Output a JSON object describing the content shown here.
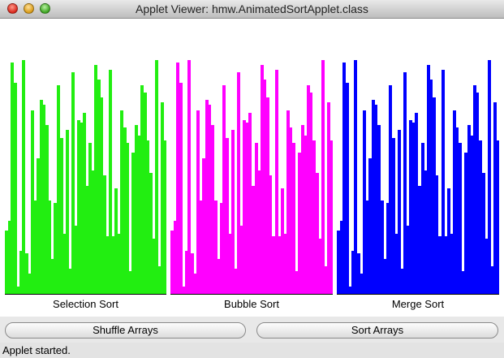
{
  "window": {
    "title": "Applet Viewer: hmw.AnimatedSortApplet.class"
  },
  "colors": {
    "selection": "#22ee11",
    "bubble": "#ff00ff",
    "merge": "#0000ff"
  },
  "panels": [
    {
      "label": "Selection Sort"
    },
    {
      "label": "Bubble Sort"
    },
    {
      "label": "Merge Sort"
    }
  ],
  "chart_data": {
    "type": "bar",
    "series": [
      {
        "name": "Selection Sort",
        "values": [
          25,
          29,
          92,
          84,
          3,
          17,
          93,
          16,
          8,
          73,
          37,
          54,
          77,
          75,
          67,
          37,
          14,
          36,
          83,
          62,
          24,
          65,
          10,
          88,
          27,
          69,
          68,
          72,
          43,
          60,
          49,
          91,
          85,
          78,
          47,
          23,
          89,
          23,
          42,
          24,
          73,
          66,
          60,
          9,
          56,
          67,
          63,
          83,
          80,
          61,
          48,
          22,
          93,
          11,
          76,
          61
        ]
      },
      {
        "name": "Bubble Sort",
        "values": [
          25,
          29,
          92,
          84,
          3,
          17,
          93,
          16,
          8,
          73,
          37,
          54,
          77,
          75,
          67,
          37,
          14,
          36,
          83,
          62,
          24,
          65,
          10,
          88,
          27,
          69,
          68,
          72,
          43,
          60,
          49,
          91,
          85,
          78,
          47,
          23,
          89,
          23,
          42,
          24,
          73,
          66,
          60,
          9,
          56,
          67,
          63,
          83,
          80,
          61,
          48,
          22,
          93,
          11,
          76,
          61
        ]
      },
      {
        "name": "Merge Sort",
        "values": [
          25,
          29,
          92,
          84,
          3,
          17,
          93,
          16,
          8,
          73,
          37,
          54,
          77,
          75,
          67,
          37,
          14,
          36,
          83,
          62,
          24,
          65,
          10,
          88,
          27,
          69,
          68,
          72,
          43,
          60,
          49,
          91,
          85,
          78,
          47,
          23,
          89,
          23,
          42,
          24,
          73,
          66,
          60,
          9,
          56,
          67,
          63,
          83,
          80,
          61,
          48,
          22,
          93,
          11,
          76,
          61
        ]
      }
    ],
    "ylim": [
      0,
      100
    ]
  },
  "buttons": {
    "shuffle_label": "Shuffle Arrays",
    "sort_label": "Sort Arrays"
  },
  "status": {
    "text": "Applet started."
  }
}
